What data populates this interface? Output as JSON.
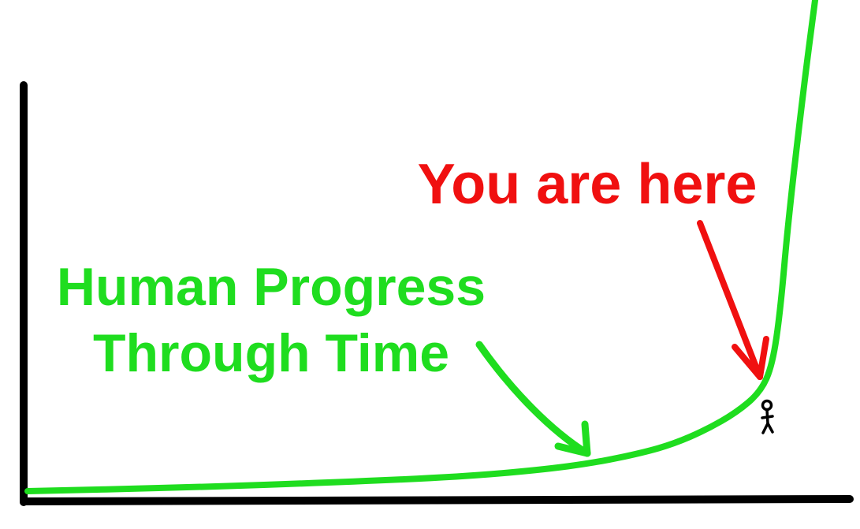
{
  "chart_data": {
    "type": "line",
    "title": "",
    "xlabel": "",
    "ylabel": "",
    "grid": false,
    "legend": "none",
    "xlim": [
      0,
      100
    ],
    "ylim": [
      0,
      100
    ],
    "series": [
      {
        "color": "#1fdd1f",
        "x": [
          0,
          20,
          40,
          55,
          65,
          72,
          78,
          82,
          86,
          90,
          93,
          94.5,
          95.5,
          96.5,
          98.5,
          100
        ],
        "y": [
          0,
          0.8,
          2,
          3.2,
          4.7,
          6.3,
          8.5,
          10.5,
          13.5,
          17.5,
          22,
          28,
          40,
          60,
          90,
          110
        ]
      }
    ],
    "annotations": [
      {
        "id": "progress",
        "lines": [
          "Human Progress",
          "Through Time"
        ],
        "color": "#1fdd1f",
        "points_to": {
          "x": 66,
          "y": 5
        }
      },
      {
        "id": "you",
        "text": "You are here",
        "color": "#f01010",
        "points_to": {
          "x": 90,
          "y": 16
        }
      }
    ]
  }
}
